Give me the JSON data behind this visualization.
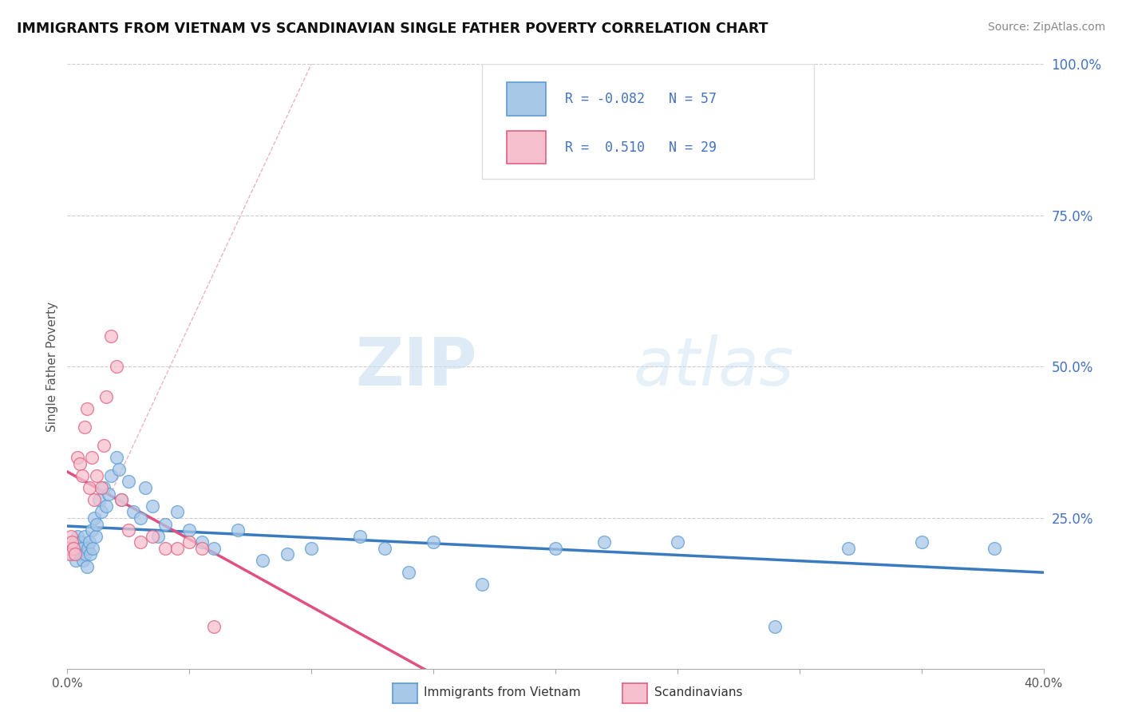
{
  "title": "IMMIGRANTS FROM VIETNAM VS SCANDINAVIAN SINGLE FATHER POVERTY CORRELATION CHART",
  "source": "Source: ZipAtlas.com",
  "ylabel": "Single Father Poverty",
  "xlim": [
    0.0,
    40.0
  ],
  "ylim": [
    0.0,
    100.0
  ],
  "r_vietnam": -0.082,
  "n_vietnam": 57,
  "r_scandinavian": 0.51,
  "n_scandinavian": 29,
  "color_vietnam_fill": "#a8c8e8",
  "color_vietnam_edge": "#5b9bd5",
  "color_scandinavian_fill": "#f7c0ce",
  "color_scandinavian_edge": "#e06080",
  "color_line_vietnam": "#3a7abf",
  "color_line_scandinavian": "#e05080",
  "color_dashed": "#e8a0b0",
  "watermark_zip": "ZIP",
  "watermark_atlas": "atlas",
  "vietnam_x": [
    0.15,
    0.2,
    0.3,
    0.35,
    0.4,
    0.45,
    0.5,
    0.55,
    0.6,
    0.65,
    0.7,
    0.75,
    0.8,
    0.85,
    0.9,
    0.95,
    1.0,
    1.05,
    1.1,
    1.15,
    1.2,
    1.3,
    1.4,
    1.5,
    1.6,
    1.7,
    1.8,
    2.0,
    2.1,
    2.2,
    2.5,
    2.7,
    3.0,
    3.2,
    3.5,
    3.7,
    4.0,
    4.5,
    5.0,
    5.5,
    6.0,
    7.0,
    8.0,
    9.0,
    10.0,
    12.0,
    13.0,
    14.0,
    15.0,
    17.0,
    20.0,
    22.0,
    25.0,
    29.0,
    32.0,
    35.0,
    38.0
  ],
  "vietnam_y": [
    20,
    19,
    21,
    18,
    22,
    20,
    19,
    21,
    20,
    18,
    22,
    19,
    17,
    20,
    21,
    19,
    23,
    20,
    25,
    22,
    24,
    28,
    26,
    30,
    27,
    29,
    32,
    35,
    33,
    28,
    31,
    26,
    25,
    30,
    27,
    22,
    24,
    26,
    23,
    21,
    20,
    23,
    18,
    19,
    20,
    22,
    20,
    16,
    21,
    14,
    20,
    21,
    21,
    7,
    20,
    21,
    20
  ],
  "scandinavian_x": [
    0.05,
    0.1,
    0.15,
    0.2,
    0.25,
    0.3,
    0.4,
    0.5,
    0.6,
    0.7,
    0.8,
    0.9,
    1.0,
    1.1,
    1.2,
    1.4,
    1.5,
    1.6,
    1.8,
    2.0,
    2.2,
    2.5,
    3.0,
    3.5,
    4.0,
    4.5,
    5.0,
    5.5,
    6.0
  ],
  "scandinavian_y": [
    20,
    19,
    22,
    21,
    20,
    19,
    35,
    34,
    32,
    40,
    43,
    30,
    35,
    28,
    32,
    30,
    37,
    45,
    55,
    50,
    28,
    23,
    21,
    22,
    20,
    20,
    21,
    20,
    7
  ]
}
